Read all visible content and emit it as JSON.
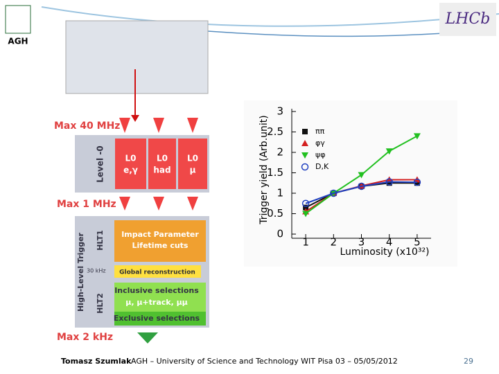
{
  "logos": {
    "left": "AGH",
    "right": "LHCb"
  },
  "trigger": {
    "max_l0": "Max 40 MHz",
    "level0": "Level -0",
    "l0_boxes": [
      [
        "L0",
        "e,γ"
      ],
      [
        "L0",
        "had"
      ],
      [
        "L0",
        "μ"
      ]
    ],
    "max_hlt": "Max 1 MHz",
    "hlt": "High-Level Trigger",
    "hlt1": "HLT1",
    "hlt2": "HLT2",
    "impact": [
      "Impact Parameter",
      "Lifetime cuts"
    ],
    "rate": "30 kHz",
    "global": "Global reconstruction",
    "inclusive": [
      "Inclusive selections",
      "μ, μ+track, μμ"
    ],
    "exclusive": "Exclusive selections",
    "max_out": "Max 2 kHz"
  },
  "chart_data": {
    "type": "line",
    "xlabel": "Luminosity (x10³²)",
    "ylabel": "Trigger yield (Arb.unit)",
    "x": [
      1,
      2,
      3,
      4,
      5
    ],
    "xlim": [
      0.5,
      5.5
    ],
    "xticks": [
      1,
      2,
      3,
      4,
      5
    ],
    "ylim": [
      0,
      3
    ],
    "yticks": [
      0,
      0.5,
      1,
      1.5,
      2,
      2.5,
      3
    ],
    "series": [
      {
        "name": "ππ",
        "color": "#111111",
        "marker": "square",
        "values": [
          0.65,
          1.0,
          1.17,
          1.25,
          1.25
        ]
      },
      {
        "name": "φγ",
        "color": "#d42020",
        "marker": "triangle",
        "values": [
          0.55,
          1.0,
          1.18,
          1.33,
          1.33
        ]
      },
      {
        "name": "ψφ",
        "color": "#22c020",
        "marker": "triangle-down",
        "values": [
          0.5,
          1.0,
          1.45,
          2.03,
          2.4
        ]
      },
      {
        "name": "D,K",
        "color": "#2040c0",
        "marker": "circle",
        "values": [
          0.75,
          1.0,
          1.17,
          1.28,
          1.27
        ]
      }
    ]
  },
  "footer": {
    "author": "Tomasz Szumlak",
    "affiliation": "AGH – University of Science and Technology WIT Pisa 03 – 05/05/2012",
    "page": "29"
  }
}
